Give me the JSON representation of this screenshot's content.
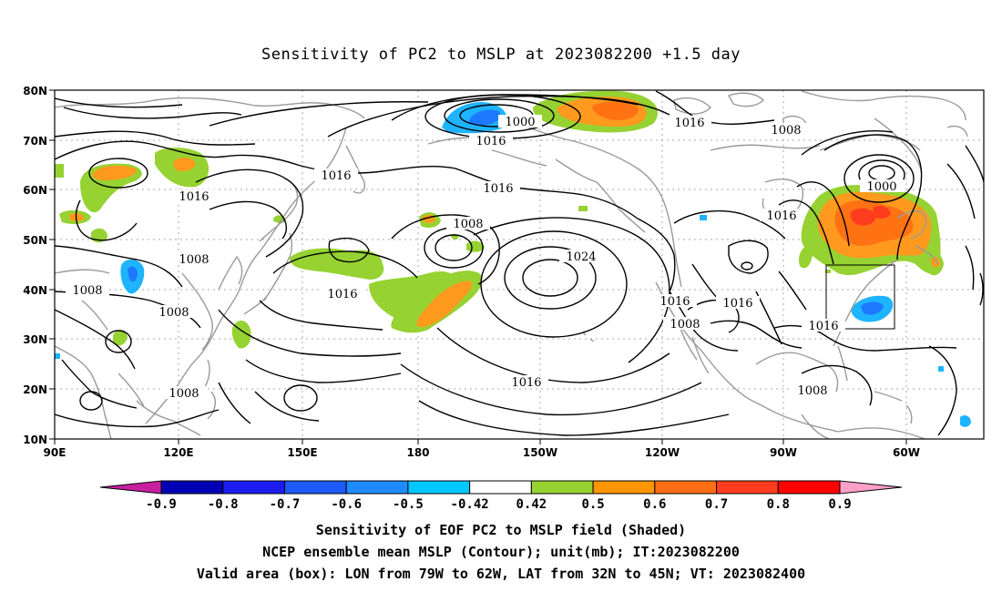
{
  "title": "Sensitivity of PC2 to MSLP at 2023082200 +1.5 day",
  "lat_ticks": [
    "80N",
    "70N",
    "60N",
    "50N",
    "40N",
    "30N",
    "20N",
    "10N"
  ],
  "lon_ticks": [
    "90E",
    "120E",
    "150E",
    "180",
    "150W",
    "120W",
    "90W",
    "60W"
  ],
  "contour_labels": [
    "1000",
    "1016",
    "1016",
    "1008",
    "1016",
    "1016",
    "1008",
    "1016",
    "1008",
    "1008",
    "1024",
    "1016",
    "1016",
    "1016",
    "1008",
    "1016",
    "1000",
    "1016",
    "1016",
    "1008",
    "1008",
    "1008",
    "1016",
    "1008"
  ],
  "colorbar": {
    "labels": [
      "-0.9",
      "-0.8",
      "-0.7",
      "-0.6",
      "-0.5",
      "-0.42",
      "0.42",
      "0.5",
      "0.6",
      "0.7",
      "0.8",
      "0.9"
    ],
    "colors": [
      "#c81f9e",
      "#0000b4",
      "#1c1cf0",
      "#1e5af5",
      "#1e8cff",
      "#00c8ff",
      "#ffffff",
      "#96d232",
      "#ff9600",
      "#ff6e14",
      "#ff3c1e",
      "#ff0000",
      "#ffa0c8"
    ]
  },
  "shading_colors": {
    "green": "#96d232",
    "orange": "#ff9a1e",
    "dark_orange": "#ff7214",
    "light_blue": "#1eb4ff",
    "blue": "#1e78ff"
  },
  "captions": [
    "Sensitivity of EOF PC2 to MSLP field (Shaded)",
    "NCEP ensemble mean MSLP (Contour); unit(mb); IT:2023082200",
    "Valid area (box): LON from 79W to 62W, LAT from 32N to 45N; VT: 2023082400"
  ]
}
